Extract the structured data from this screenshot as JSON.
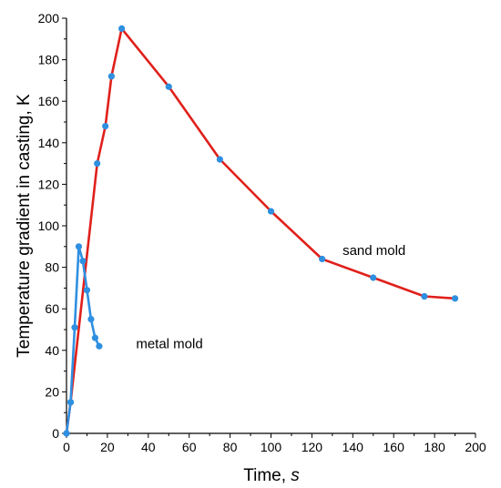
{
  "chart_data": {
    "type": "line",
    "title": "",
    "xlabel_main": "Time, ",
    "xlabel_unit": "s",
    "ylabel": "Temperature gradient in casting, K",
    "xlim": [
      0,
      200
    ],
    "ylim": [
      0,
      200
    ],
    "x_ticks": [
      0,
      20,
      40,
      60,
      80,
      100,
      120,
      140,
      160,
      180,
      200
    ],
    "y_ticks": [
      0,
      20,
      40,
      60,
      80,
      100,
      120,
      140,
      160,
      180,
      200
    ],
    "grid": false,
    "legend": "none",
    "series": [
      {
        "name": "sand mold",
        "line_color": "#e0201b",
        "marker_color": "#2f8fe0",
        "points": [
          [
            0,
            0
          ],
          [
            2,
            15
          ],
          [
            15,
            130
          ],
          [
            19,
            148
          ],
          [
            22,
            172
          ],
          [
            27,
            195
          ],
          [
            50,
            167
          ],
          [
            75,
            132
          ],
          [
            100,
            107
          ],
          [
            125,
            84
          ],
          [
            150,
            75
          ],
          [
            175,
            66
          ],
          [
            190,
            65
          ]
        ]
      },
      {
        "name": "metal mold",
        "line_color": "#2f8fe0",
        "marker_color": "#2f8fe0",
        "points": [
          [
            0,
            0
          ],
          [
            2,
            15
          ],
          [
            4,
            51
          ],
          [
            6,
            90
          ],
          [
            8,
            83
          ],
          [
            10,
            69
          ],
          [
            12,
            55
          ],
          [
            14,
            46
          ],
          [
            16,
            42
          ]
        ]
      }
    ],
    "annotations": [
      {
        "text": "sand mold",
        "x": 135,
        "y": 86
      },
      {
        "text": "metal mold",
        "x": 34,
        "y": 41
      }
    ]
  }
}
